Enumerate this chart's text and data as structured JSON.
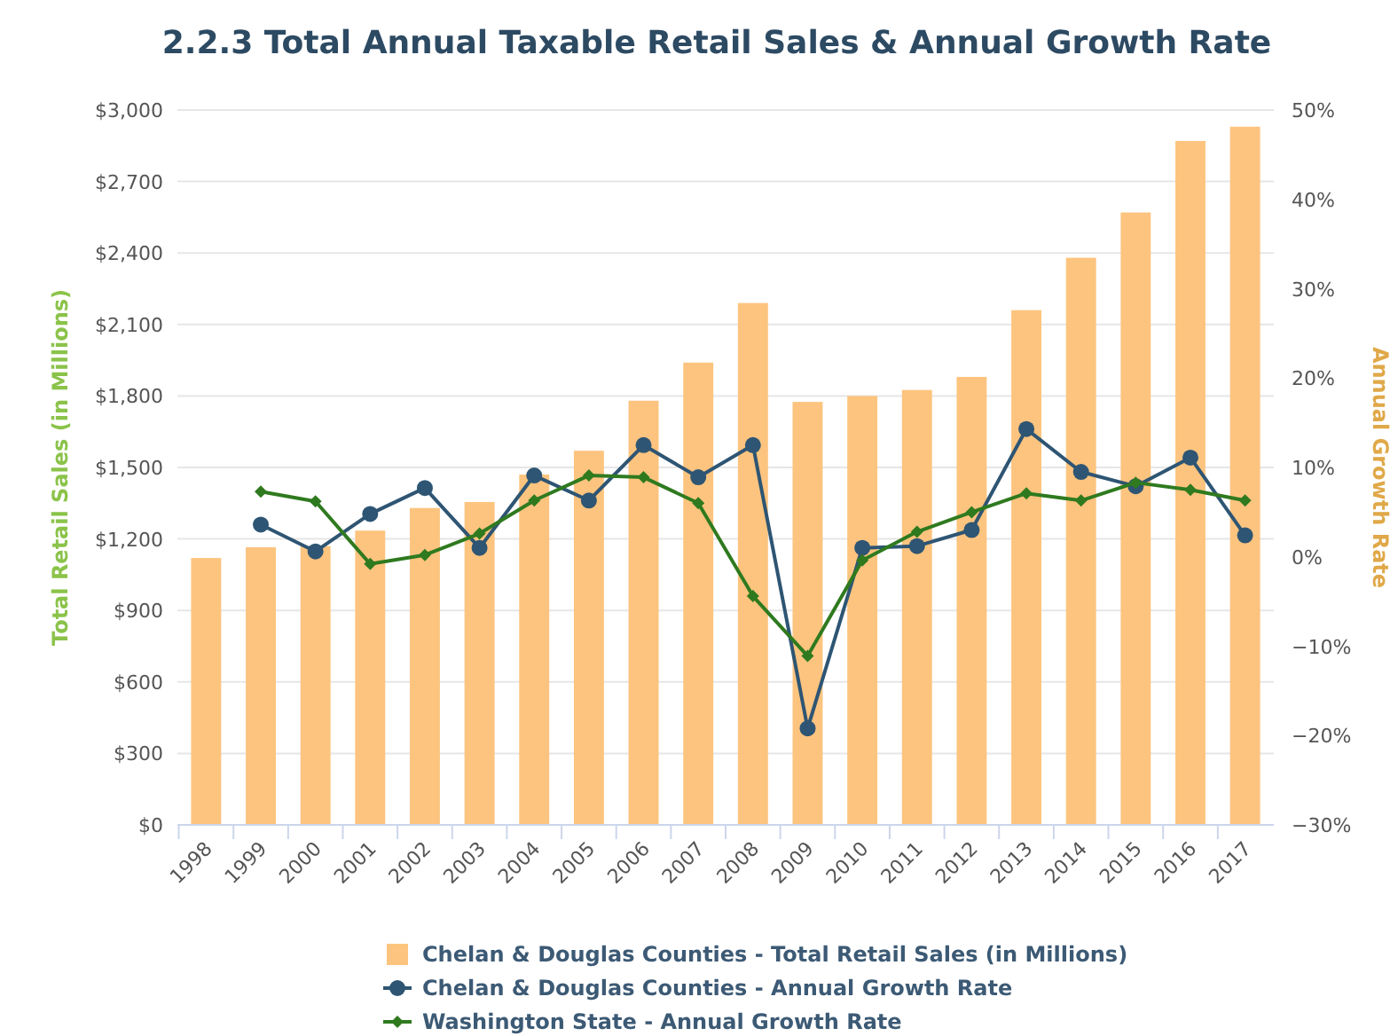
{
  "chart_data": {
    "type": "bar",
    "title": "2.2.3 Total Annual Taxable Retail Sales & Annual Growth Rate",
    "ylabel": "Total Retail Sales (in Millions)",
    "y2label": "Annual Growth Rate",
    "categories": [
      "1998",
      "1999",
      "2000",
      "2001",
      "2002",
      "2003",
      "2004",
      "2005",
      "2006",
      "2007",
      "2008",
      "2009",
      "2010",
      "2011",
      "2012",
      "2013",
      "2014",
      "2015",
      "2016",
      "2017"
    ],
    "series": [
      {
        "name": "Chelan & Douglas Counties - Total Retail Sales (in Millions)",
        "color": "#fdc47f",
        "values": [
          1120,
          1165,
          1170,
          1235,
          1330,
          1355,
          1470,
          1570,
          1780,
          1940,
          2190,
          1775,
          1800,
          1825,
          1880,
          2160,
          2380,
          2570,
          2870,
          2930
        ]
      },
      {
        "name": "Chelan & Douglas Counties - Annual Growth Rate",
        "type": "line",
        "axis": "y2",
        "color": "#2e5573",
        "marker": "circle",
        "values": [
          null,
          3.6,
          0.6,
          4.8,
          7.7,
          1,
          9.1,
          6.3,
          12.5,
          8.9,
          12.5,
          -19.2,
          1,
          1.2,
          3,
          14.3,
          9.5,
          7.9,
          11.1,
          2.4
        ]
      },
      {
        "name": "Washington State - Annual Growth Rate",
        "type": "line",
        "axis": "y2",
        "color": "#2f7a1f",
        "marker": "diamond",
        "values": [
          null,
          7.3,
          6.2,
          -0.8,
          0.2,
          2.6,
          6.3,
          9.1,
          8.9,
          6,
          -4.4,
          -11.1,
          -0.4,
          2.8,
          5,
          7.1,
          6.3,
          8.3,
          7.5,
          6.3
        ]
      }
    ],
    "ylim": [
      0,
      3000
    ],
    "yticks": [
      {
        "value": 0,
        "label": "$0"
      },
      {
        "value": 300,
        "label": "$300"
      },
      {
        "value": 600,
        "label": "$600"
      },
      {
        "value": 900,
        "label": "$900"
      },
      {
        "value": 1200,
        "label": "$1,200"
      },
      {
        "value": 1500,
        "label": "$1,500"
      },
      {
        "value": 1800,
        "label": "$1,800"
      },
      {
        "value": 2100,
        "label": "$2,100"
      },
      {
        "value": 2400,
        "label": "$2,400"
      },
      {
        "value": 2700,
        "label": "$2,700"
      },
      {
        "value": 3000,
        "label": "$3,000"
      }
    ],
    "y2lim": [
      -30,
      50
    ],
    "y2ticks": [
      {
        "value": -30,
        "label": "−30%"
      },
      {
        "value": -20,
        "label": "−20%"
      },
      {
        "value": -10,
        "label": "−10%"
      },
      {
        "value": 0,
        "label": "0%"
      },
      {
        "value": 10,
        "label": "10%"
      },
      {
        "value": 20,
        "label": "20%"
      },
      {
        "value": 30,
        "label": "30%"
      },
      {
        "value": 40,
        "label": "40%"
      },
      {
        "value": 50,
        "label": "50%"
      }
    ],
    "grid": "y",
    "legend": "bottom",
    "line_style": "solid"
  }
}
